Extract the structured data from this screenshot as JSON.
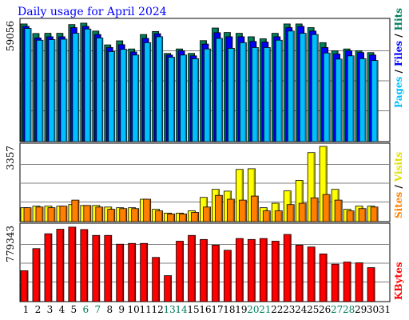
{
  "chart_data": {
    "type": "bar",
    "title": "Daily usage for April 2024",
    "days": [
      "1",
      "2",
      "3",
      "4",
      "5",
      "6",
      "7",
      "8",
      "9",
      "10",
      "11",
      "12",
      "13",
      "14",
      "15",
      "16",
      "17",
      "18",
      "19",
      "20",
      "21",
      "22",
      "23",
      "24",
      "25",
      "26",
      "27",
      "28",
      "29",
      "30",
      "31"
    ],
    "weekend_days": [
      "6",
      "7",
      "13",
      "14",
      "20",
      "21",
      "27",
      "28"
    ],
    "panels": [
      {
        "id": "hits",
        "ymax_label": "59056",
        "ylim": [
          0,
          59056
        ],
        "grid": true,
        "legend": [
          "Hits",
          "Files",
          "Pages"
        ],
        "series": [
          {
            "name": "Hits",
            "color": "#00805C",
            "values": [
              57900,
              53200,
              53300,
              53300,
              57600,
              58300,
              54400,
              47600,
              49600,
              45600,
              52700,
              54200,
              43400,
              45600,
              43400,
              49700,
              55900,
              53700,
              53300,
              51600,
              50600,
              53300,
              57900,
              57900,
              56100,
              48700,
              44700,
              45600,
              44700,
              43800,
              null
            ]
          },
          {
            "name": "Files",
            "color": "#0000FF",
            "values": [
              56700,
              51000,
              51600,
              51600,
              56100,
              56700,
              52700,
              46300,
              47700,
              44100,
              50800,
              53100,
              42600,
              44700,
              42200,
              48000,
              53600,
              51600,
              51600,
              49300,
              49000,
              51600,
              56100,
              56700,
              54400,
              46300,
              43100,
              44700,
              43800,
              42600,
              null
            ]
          },
          {
            "name": "Pages",
            "color": "#00BFFF",
            "values": [
              55700,
              49900,
              50200,
              50400,
              53300,
              55400,
              51000,
              44300,
              45400,
              42600,
              48700,
              51600,
              41500,
              42600,
              40800,
              45600,
              50800,
              45900,
              48700,
              46300,
              46300,
              49900,
              54400,
              53300,
              52700,
              43600,
              40600,
              42200,
              40800,
              39900,
              null
            ]
          }
        ]
      },
      {
        "id": "visits",
        "ymax_label": "3357",
        "ylim": [
          0,
          3357
        ],
        "grid": true,
        "legend": [
          "Visits",
          "Sites"
        ],
        "series": [
          {
            "name": "Visits",
            "color": "#FFFF00",
            "values": [
              620,
              690,
              690,
              690,
              760,
              720,
              720,
              650,
              620,
              620,
              1000,
              550,
              380,
              380,
              480,
              1080,
              1440,
              1360,
              2330,
              2360,
              620,
              820,
              1370,
              1840,
              3080,
              3357,
              1440,
              550,
              690,
              690,
              null
            ]
          },
          {
            "name": "Sites",
            "color": "#FF8000",
            "values": [
              620,
              650,
              620,
              690,
              960,
              720,
              650,
              550,
              580,
              580,
              1000,
              480,
              340,
              340,
              410,
              650,
              1170,
              1000,
              960,
              1140,
              480,
              480,
              760,
              820,
              1060,
              1210,
              960,
              480,
              580,
              650,
              null
            ]
          }
        ]
      },
      {
        "id": "kbytes",
        "ymax_label": "779343",
        "ylim": [
          0,
          779343
        ],
        "grid": true,
        "legend": [
          "KBytes"
        ],
        "series": [
          {
            "name": "KBytes",
            "color": "#FF0000",
            "values": [
              320000,
              549000,
              703000,
              750000,
              772000,
              747000,
              686000,
              686000,
              595000,
              603000,
              603000,
              458000,
              269000,
              626000,
              686000,
              644000,
              585000,
              532000,
              654000,
              644000,
              654000,
              626000,
              696000,
              585000,
              566000,
              494000,
              388000,
              410000,
              402000,
              352000,
              null
            ]
          }
        ]
      }
    ]
  }
}
